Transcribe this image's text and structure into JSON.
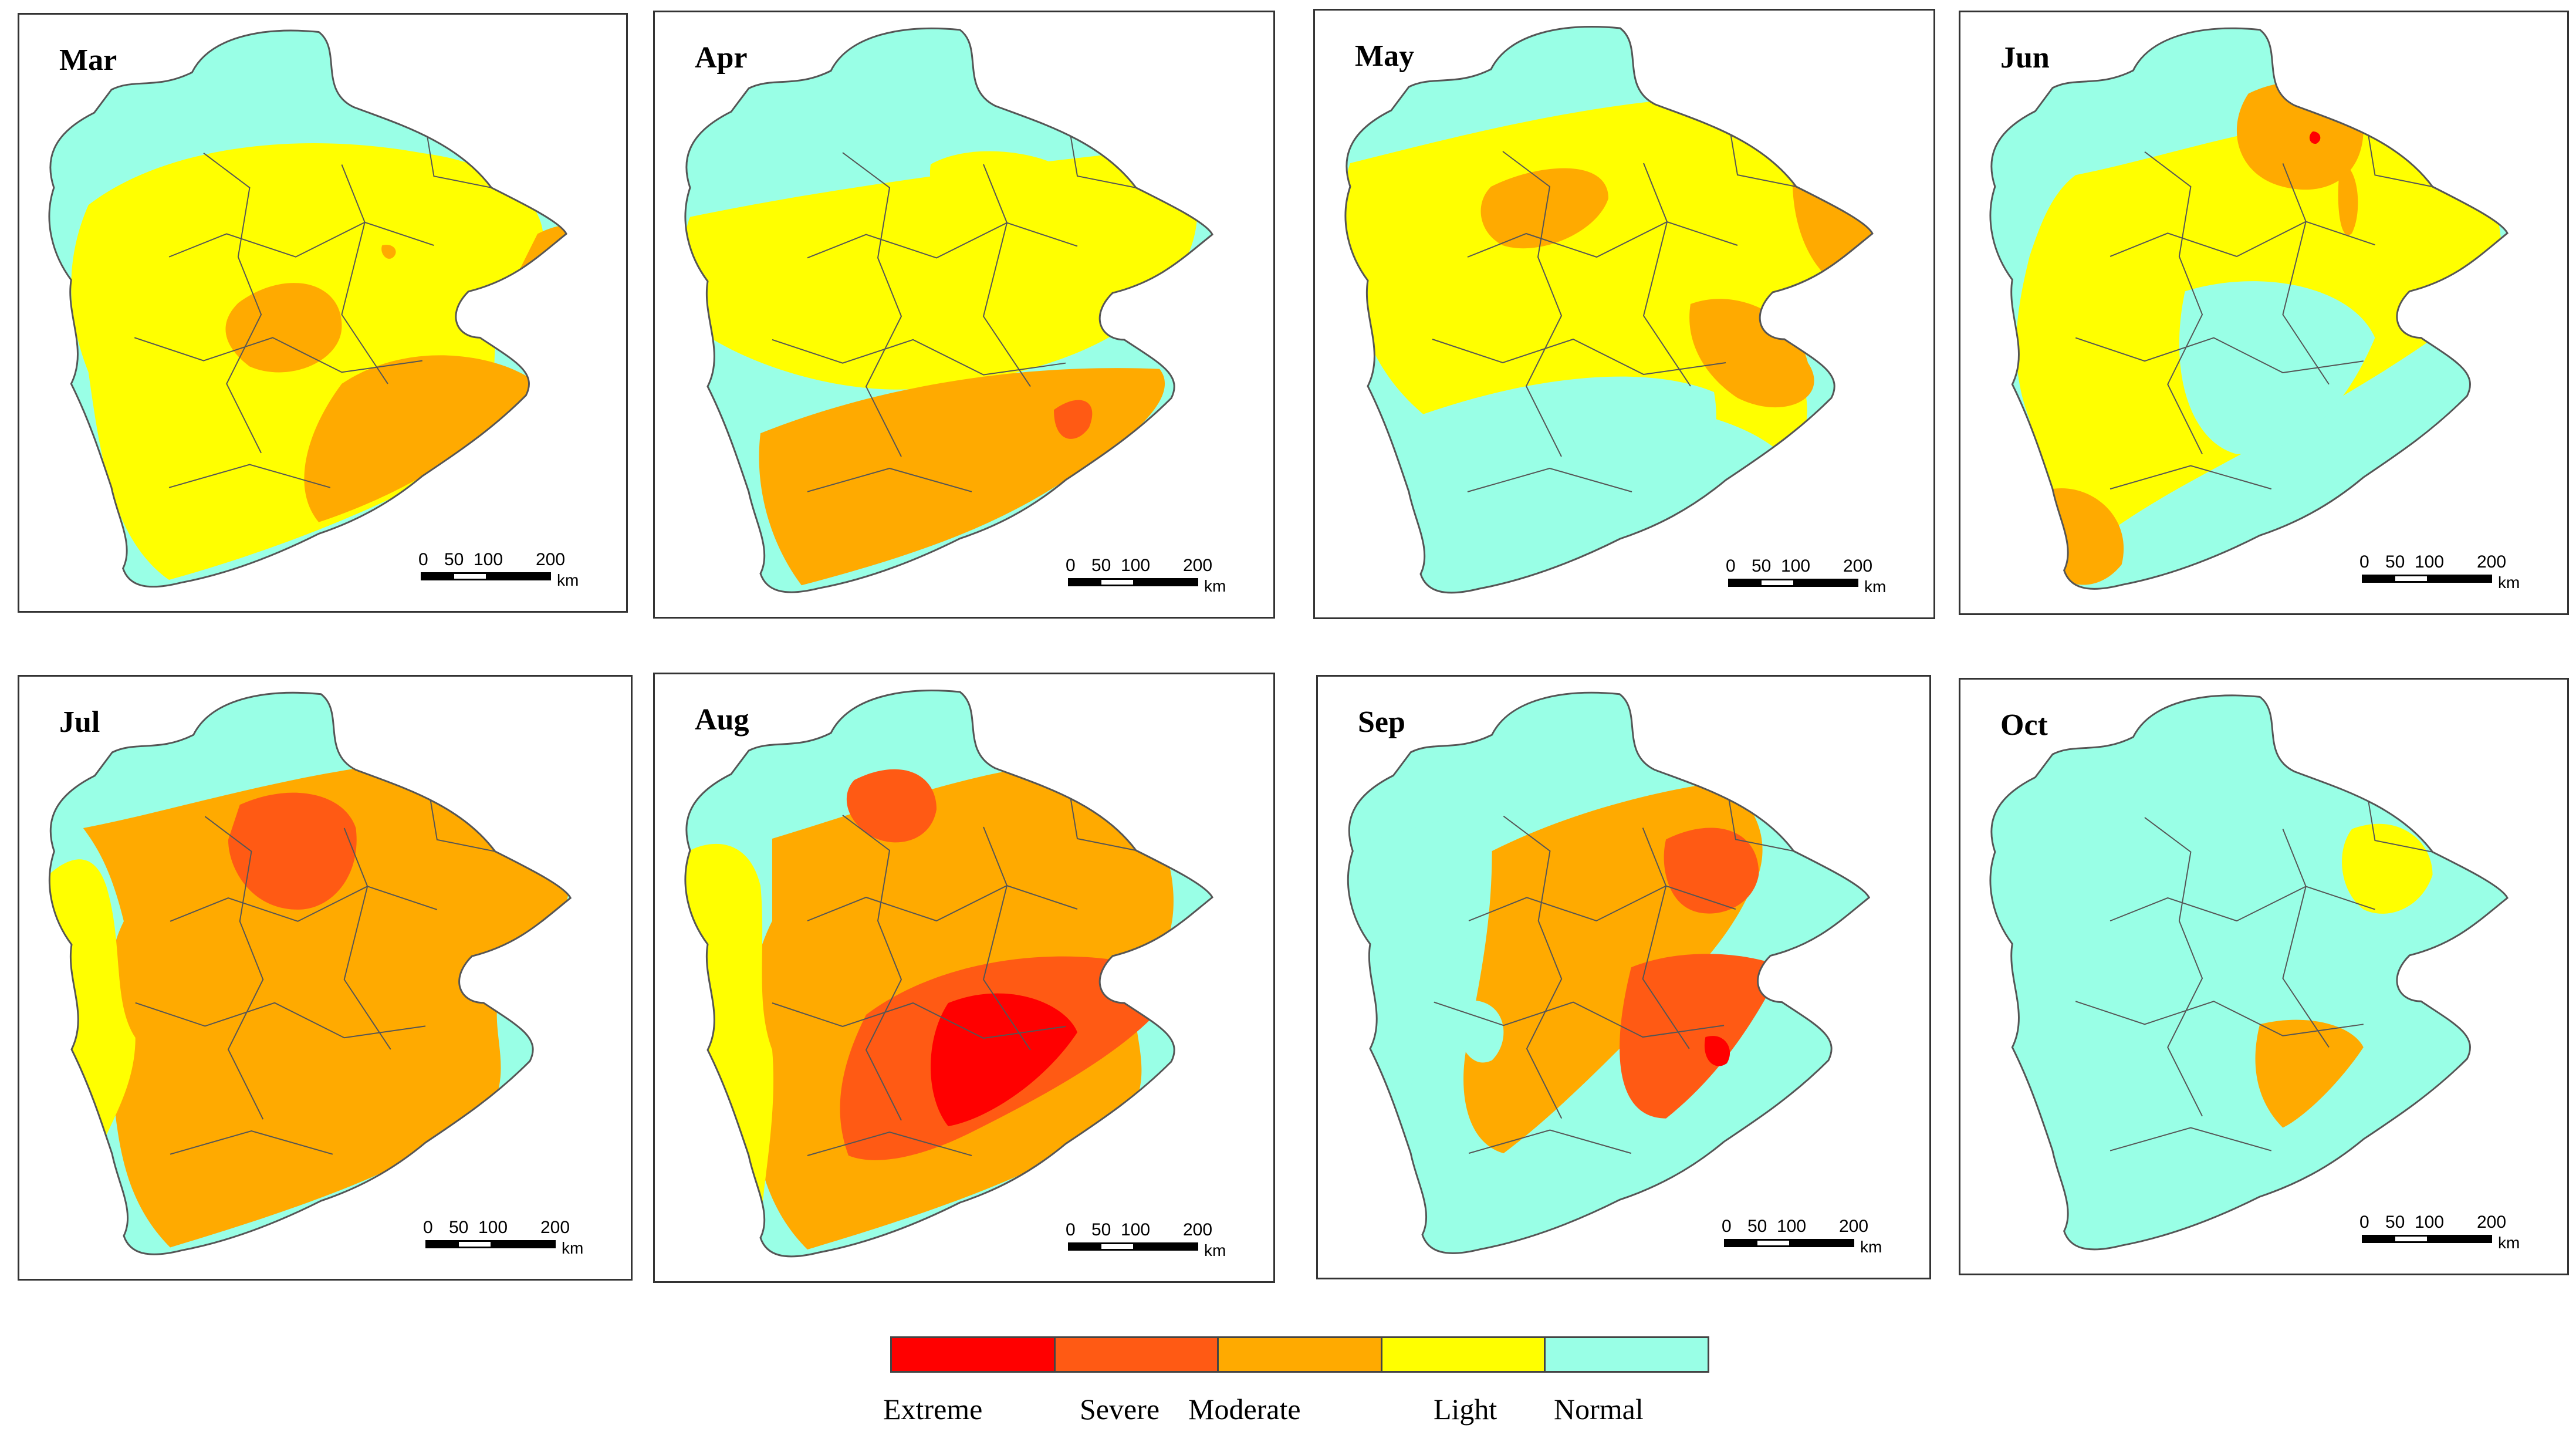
{
  "months": [
    "Mar",
    "Apr",
    "May",
    "Jun",
    "Jul",
    "Aug",
    "Sep",
    "Oct"
  ],
  "scale": {
    "labels": [
      "0",
      "50",
      "100",
      "200"
    ],
    "unit": "km"
  },
  "legend": [
    {
      "label": "Extreme",
      "color": "#ff0000"
    },
    {
      "label": "Severe",
      "color": "#ff5a14"
    },
    {
      "label": "Moderate",
      "color": "#ffaa00"
    },
    {
      "label": "Light",
      "color": "#ffff00"
    },
    {
      "label": "Normal",
      "color": "#99ffe6"
    }
  ],
  "colors": {
    "border": "#555555",
    "background": "#ffffff"
  }
}
